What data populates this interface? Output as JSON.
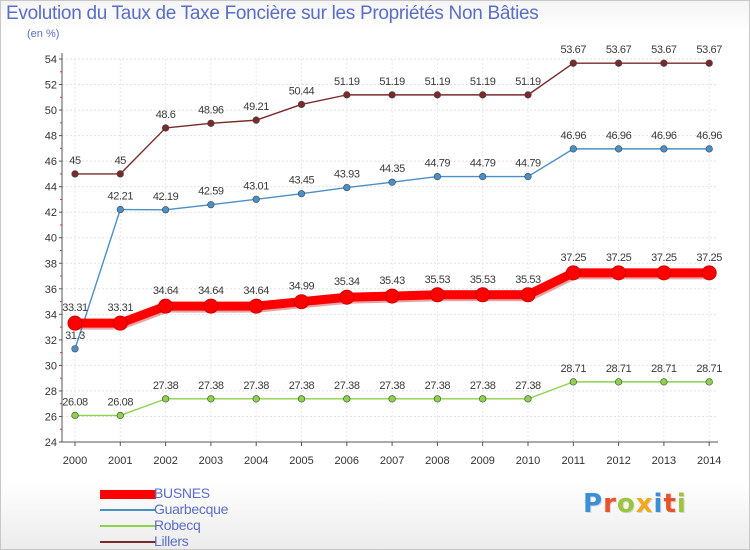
{
  "title": "Evolution du Taux de Taxe Foncière sur les Propriétés Non Bâties",
  "unit_label": "(en %)",
  "logo_text": "Proxiti",
  "chart_data": {
    "type": "line",
    "title": "Evolution du Taux de Taxe Foncière sur les Propriétés Non Bâties",
    "ylabel": "(en %)",
    "xlabel": "",
    "x": [
      "2000",
      "2001",
      "2002",
      "2003",
      "2004",
      "2005",
      "2006",
      "2007",
      "2008",
      "2009",
      "2010",
      "2011",
      "2012",
      "2013",
      "2014"
    ],
    "ylim": [
      24,
      54
    ],
    "yticks": [
      "24",
      "26",
      "28",
      "30",
      "32",
      "34",
      "36",
      "38",
      "40",
      "42",
      "44",
      "46",
      "48",
      "50",
      "52",
      "54"
    ],
    "grid": true,
    "legend_position": "bottom-left",
    "series": [
      {
        "name": "BUSNES",
        "color": "#ff0000",
        "values": [
          33.31,
          33.31,
          34.64,
          34.64,
          34.64,
          34.99,
          35.34,
          35.43,
          35.53,
          35.53,
          35.53,
          37.25,
          37.25,
          37.25,
          37.25
        ],
        "labels": [
          "33.31",
          "33.31",
          "34.64",
          "34.64",
          "34.64",
          "34.99",
          "35.34",
          "35.43",
          "35.53",
          "35.53",
          "35.53",
          "37.25",
          "37.25",
          "37.25",
          "37.25"
        ]
      },
      {
        "name": "Guarbecque",
        "color": "#4a90c8",
        "values": [
          31.3,
          42.21,
          42.19,
          42.59,
          43.01,
          43.45,
          43.93,
          44.35,
          44.79,
          44.79,
          44.79,
          46.96,
          46.96,
          46.96,
          46.96
        ],
        "labels": [
          "31.3",
          "42.21",
          "42.19",
          "42.59",
          "43.01",
          "43.45",
          "43.93",
          "44.35",
          "44.79",
          "44.79",
          "44.79",
          "46.96",
          "46.96",
          "46.96",
          "46.96"
        ]
      },
      {
        "name": "Robecq",
        "color": "#8cd24a",
        "values": [
          26.08,
          26.08,
          27.38,
          27.38,
          27.38,
          27.38,
          27.38,
          27.38,
          27.38,
          27.38,
          27.38,
          28.71,
          28.71,
          28.71,
          28.71
        ],
        "labels": [
          "26.08",
          "26.08",
          "27.38",
          "27.38",
          "27.38",
          "27.38",
          "27.38",
          "27.38",
          "27.38",
          "27.38",
          "27.38",
          "28.71",
          "28.71",
          "28.71",
          "28.71"
        ]
      },
      {
        "name": "Lillers",
        "color": "#7a2a2a",
        "values": [
          45,
          45,
          48.6,
          48.96,
          49.21,
          50.44,
          51.19,
          51.19,
          51.19,
          51.19,
          51.19,
          53.67,
          53.67,
          53.67,
          53.67
        ],
        "labels": [
          "45",
          "45",
          "48.6",
          "48.96",
          "49.21",
          "50.44",
          "51.19",
          "51.19",
          "51.19",
          "51.19",
          "51.19",
          "53.67",
          "53.67",
          "53.67",
          "53.67"
        ]
      }
    ]
  }
}
